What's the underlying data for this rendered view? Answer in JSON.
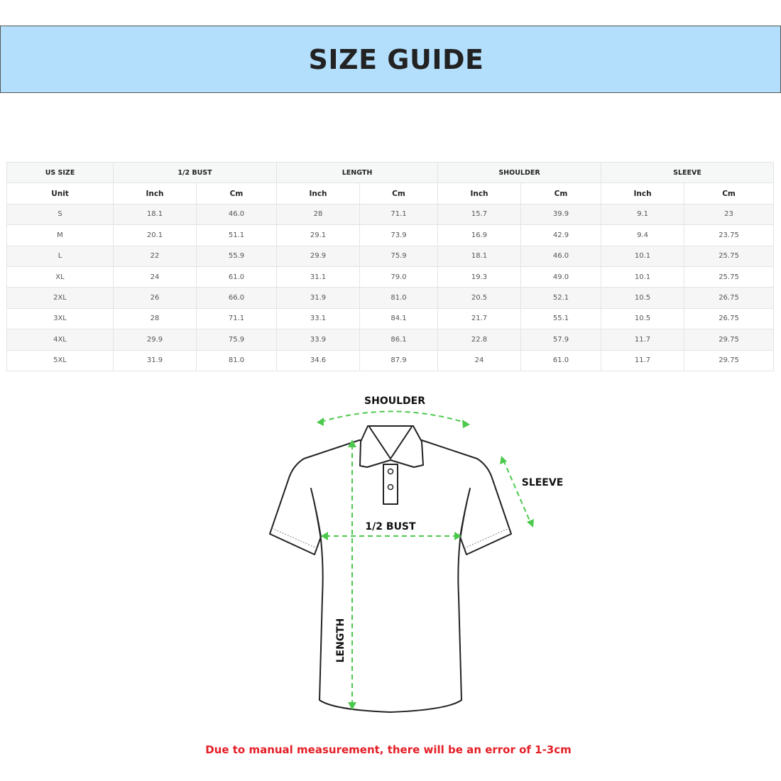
{
  "header": {
    "title": "SIZE GUIDE",
    "background": "#b3dffc"
  },
  "table": {
    "groups": [
      "US SIZE",
      "1/2 BUST",
      "LENGTH",
      "SHOULDER",
      "SLEEVE"
    ],
    "units": [
      "Unit",
      "Inch",
      "Cm",
      "Inch",
      "Cm",
      "Inch",
      "Cm",
      "Inch",
      "Cm"
    ],
    "rows": [
      [
        "S",
        "18.1",
        "46.0",
        "28",
        "71.1",
        "15.7",
        "39.9",
        "9.1",
        "23"
      ],
      [
        "M",
        "20.1",
        "51.1",
        "29.1",
        "73.9",
        "16.9",
        "42.9",
        "9.4",
        "23.75"
      ],
      [
        "L",
        "22",
        "55.9",
        "29.9",
        "75.9",
        "18.1",
        "46.0",
        "10.1",
        "25.75"
      ],
      [
        "XL",
        "24",
        "61.0",
        "31.1",
        "79.0",
        "19.3",
        "49.0",
        "10.1",
        "25.75"
      ],
      [
        "2XL",
        "26",
        "66.0",
        "31.9",
        "81.0",
        "20.5",
        "52.1",
        "10.5",
        "26.75"
      ],
      [
        "3XL",
        "28",
        "71.1",
        "33.1",
        "84.1",
        "21.7",
        "55.1",
        "10.5",
        "26.75"
      ],
      [
        "4XL",
        "29.9",
        "75.9",
        "33.9",
        "86.1",
        "22.8",
        "57.9",
        "11.7",
        "29.75"
      ],
      [
        "5XL",
        "31.9",
        "81.0",
        "34.6",
        "87.9",
        "24",
        "61.0",
        "11.7",
        "29.75"
      ]
    ]
  },
  "diagram": {
    "shoulder_label": "SHOULDER",
    "sleeve_label": "SLEEVE",
    "bust_label": "1/2 BUST",
    "length_label": "LENGTH",
    "arrow_color": "#4cc94c"
  },
  "note": {
    "text": "Due to manual measurement, there will be an error of 1-3cm",
    "color": "#e41e26"
  }
}
